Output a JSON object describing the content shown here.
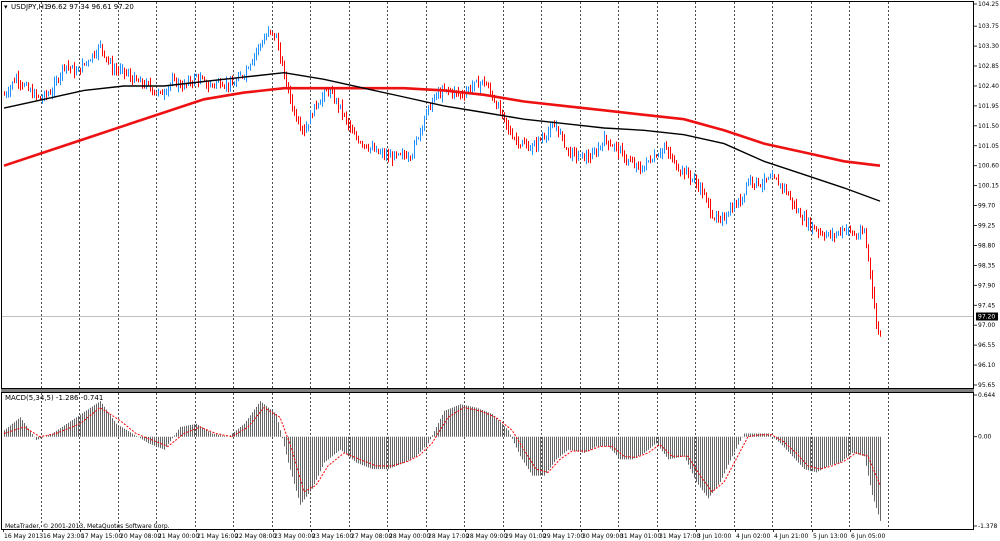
{
  "chart_data": {
    "type": "candlestick",
    "header": {
      "symbol_label": "USDJPY,H1",
      "ohlc_text": "96.62 97.34 96.61 97.20",
      "indicator_label": "MACD(5,34,5) -1.286 -0.741"
    },
    "footer_text": "MetaTrader, © 2001-2013, MetaQuotes Software Corp.",
    "current_price_label": "97.20",
    "current_price": 97.2,
    "colors": {
      "bull": "#1e90ff",
      "bear": "#ff0000",
      "ma_fast": "#000000",
      "ma_slow": "#ee1111",
      "hist": "#555555",
      "signal": "#ff0000",
      "grid": "#000000",
      "price_line": "#c0c0c0"
    },
    "price_axis": {
      "ylim": [
        95.65,
        104.25
      ],
      "ticks": [
        "104.25",
        "103.75",
        "103.30",
        "102.85",
        "102.40",
        "101.95",
        "101.50",
        "101.05",
        "100.60",
        "100.15",
        "99.70",
        "99.25",
        "98.80",
        "98.35",
        "97.90",
        "97.45",
        "97.00",
        "96.55",
        "96.10",
        "95.65"
      ]
    },
    "macd_axis": {
      "ylim": [
        -1.378,
        0.644
      ],
      "ticks": [
        "0.644",
        "0.00",
        "-1.378"
      ]
    },
    "x_labels": [
      "16 May 2013",
      "16 May 23:00",
      "17 May 15:00",
      "20 May 08:00",
      "21 May 00:00",
      "21 May 16:00",
      "22 May 08:00",
      "23 May 00:00",
      "23 May 16:00",
      "27 May 08:00",
      "28 May 00:00",
      "28 May 17:00",
      "28 May 09:00",
      "29 May 01:00",
      "29 May 17:00",
      "30 May 09:00",
      "31 May 01:00",
      "31 May 17:00",
      "3 Jun 10:00",
      "4 Jun 02:00",
      "4 Jun 21:00",
      "5 Jun 13:00",
      "6 Jun 05:00"
    ],
    "price_path": [
      [
        0,
        102.2
      ],
      [
        6,
        102.6
      ],
      [
        12,
        102.3
      ],
      [
        18,
        102.1
      ],
      [
        24,
        102.3
      ],
      [
        30,
        102.9
      ],
      [
        36,
        102.7
      ],
      [
        42,
        103.0
      ],
      [
        48,
        103.3
      ],
      [
        54,
        102.8
      ],
      [
        60,
        102.7
      ],
      [
        66,
        102.5
      ],
      [
        72,
        102.4
      ],
      [
        78,
        102.2
      ],
      [
        84,
        102.5
      ],
      [
        90,
        102.4
      ],
      [
        96,
        102.6
      ],
      [
        102,
        102.4
      ],
      [
        108,
        102.5
      ],
      [
        114,
        102.4
      ],
      [
        120,
        102.7
      ],
      [
        126,
        103.2
      ],
      [
        132,
        103.6
      ],
      [
        136,
        103.5
      ],
      [
        140,
        102.6
      ],
      [
        145,
        101.8
      ],
      [
        150,
        101.4
      ],
      [
        156,
        102.0
      ],
      [
        162,
        102.3
      ],
      [
        168,
        101.9
      ],
      [
        174,
        101.3
      ],
      [
        180,
        101.1
      ],
      [
        186,
        100.9
      ],
      [
        192,
        100.8
      ],
      [
        198,
        100.8
      ],
      [
        204,
        100.9
      ],
      [
        210,
        101.7
      ],
      [
        216,
        102.2
      ],
      [
        222,
        102.3
      ],
      [
        228,
        102.2
      ],
      [
        234,
        102.4
      ],
      [
        240,
        102.5
      ],
      [
        246,
        102.0
      ],
      [
        252,
        101.4
      ],
      [
        258,
        101.1
      ],
      [
        264,
        101.0
      ],
      [
        270,
        101.3
      ],
      [
        276,
        101.5
      ],
      [
        282,
        100.9
      ],
      [
        288,
        100.8
      ],
      [
        294,
        100.8
      ],
      [
        300,
        101.2
      ],
      [
        306,
        101.0
      ],
      [
        312,
        100.7
      ],
      [
        318,
        100.5
      ],
      [
        324,
        100.8
      ],
      [
        330,
        101.0
      ],
      [
        336,
        100.6
      ],
      [
        342,
        100.4
      ],
      [
        348,
        100.1
      ],
      [
        354,
        99.5
      ],
      [
        358,
        99.3
      ],
      [
        362,
        99.6
      ],
      [
        368,
        99.8
      ],
      [
        372,
        100.3
      ],
      [
        378,
        100.2
      ],
      [
        384,
        100.3
      ],
      [
        390,
        100.1
      ],
      [
        396,
        99.6
      ],
      [
        402,
        99.3
      ],
      [
        408,
        99.1
      ],
      [
        414,
        99.0
      ],
      [
        420,
        99.2
      ],
      [
        426,
        99.0
      ],
      [
        430,
        99.1
      ],
      [
        433,
        98.2
      ],
      [
        436,
        97.0
      ],
      [
        438,
        96.8
      ]
    ],
    "ma_fast": [
      [
        0,
        101.9
      ],
      [
        20,
        102.1
      ],
      [
        40,
        102.3
      ],
      [
        60,
        102.4
      ],
      [
        80,
        102.4
      ],
      [
        100,
        102.5
      ],
      [
        120,
        102.6
      ],
      [
        140,
        102.7
      ],
      [
        160,
        102.55
      ],
      [
        180,
        102.35
      ],
      [
        200,
        102.15
      ],
      [
        220,
        101.95
      ],
      [
        240,
        101.8
      ],
      [
        260,
        101.65
      ],
      [
        280,
        101.55
      ],
      [
        300,
        101.45
      ],
      [
        320,
        101.4
      ],
      [
        340,
        101.3
      ],
      [
        360,
        101.1
      ],
      [
        380,
        100.7
      ],
      [
        400,
        100.4
      ],
      [
        420,
        100.1
      ],
      [
        438,
        99.8
      ]
    ],
    "ma_slow": [
      [
        0,
        100.6
      ],
      [
        20,
        100.9
      ],
      [
        40,
        101.2
      ],
      [
        60,
        101.5
      ],
      [
        80,
        101.8
      ],
      [
        100,
        102.1
      ],
      [
        120,
        102.25
      ],
      [
        140,
        102.35
      ],
      [
        160,
        102.35
      ],
      [
        180,
        102.35
      ],
      [
        200,
        102.35
      ],
      [
        220,
        102.3
      ],
      [
        240,
        102.2
      ],
      [
        260,
        102.05
      ],
      [
        280,
        101.95
      ],
      [
        300,
        101.85
      ],
      [
        320,
        101.75
      ],
      [
        340,
        101.65
      ],
      [
        360,
        101.4
      ],
      [
        380,
        101.1
      ],
      [
        400,
        100.9
      ],
      [
        420,
        100.7
      ],
      [
        438,
        100.6
      ]
    ],
    "macd_hist": [
      [
        0,
        0.1
      ],
      [
        8,
        0.3
      ],
      [
        16,
        -0.05
      ],
      [
        24,
        0.05
      ],
      [
        36,
        0.3
      ],
      [
        48,
        0.55
      ],
      [
        56,
        0.2
      ],
      [
        64,
        0.05
      ],
      [
        72,
        -0.1
      ],
      [
        80,
        -0.2
      ],
      [
        88,
        0.15
      ],
      [
        96,
        0.2
      ],
      [
        104,
        0.05
      ],
      [
        112,
        0.0
      ],
      [
        120,
        0.2
      ],
      [
        128,
        0.55
      ],
      [
        136,
        0.35
      ],
      [
        142,
        -0.4
      ],
      [
        148,
        -1.05
      ],
      [
        154,
        -0.8
      ],
      [
        160,
        -0.4
      ],
      [
        168,
        -0.2
      ],
      [
        176,
        -0.4
      ],
      [
        184,
        -0.5
      ],
      [
        192,
        -0.5
      ],
      [
        200,
        -0.4
      ],
      [
        206,
        -0.3
      ],
      [
        212,
        -0.1
      ],
      [
        220,
        0.4
      ],
      [
        228,
        0.5
      ],
      [
        236,
        0.45
      ],
      [
        244,
        0.35
      ],
      [
        252,
        0.1
      ],
      [
        258,
        -0.3
      ],
      [
        264,
        -0.6
      ],
      [
        270,
        -0.6
      ],
      [
        276,
        -0.35
      ],
      [
        282,
        -0.2
      ],
      [
        290,
        -0.25
      ],
      [
        296,
        -0.15
      ],
      [
        302,
        -0.15
      ],
      [
        308,
        -0.35
      ],
      [
        314,
        -0.35
      ],
      [
        320,
        -0.25
      ],
      [
        326,
        -0.1
      ],
      [
        332,
        -0.35
      ],
      [
        340,
        -0.3
      ],
      [
        346,
        -0.7
      ],
      [
        352,
        -0.95
      ],
      [
        358,
        -0.7
      ],
      [
        364,
        -0.3
      ],
      [
        370,
        0.05
      ],
      [
        376,
        0.05
      ],
      [
        382,
        0.05
      ],
      [
        388,
        -0.1
      ],
      [
        394,
        -0.3
      ],
      [
        400,
        -0.5
      ],
      [
        406,
        -0.55
      ],
      [
        412,
        -0.45
      ],
      [
        418,
        -0.4
      ],
      [
        424,
        -0.25
      ],
      [
        430,
        -0.3
      ],
      [
        434,
        -0.9
      ],
      [
        438,
        -1.3
      ]
    ],
    "macd_signal": [
      [
        0,
        0.05
      ],
      [
        10,
        0.15
      ],
      [
        18,
        0.0
      ],
      [
        26,
        0.05
      ],
      [
        38,
        0.2
      ],
      [
        48,
        0.45
      ],
      [
        58,
        0.25
      ],
      [
        66,
        0.05
      ],
      [
        74,
        -0.05
      ],
      [
        82,
        -0.15
      ],
      [
        90,
        0.05
      ],
      [
        98,
        0.15
      ],
      [
        106,
        0.05
      ],
      [
        114,
        0.0
      ],
      [
        122,
        0.15
      ],
      [
        130,
        0.45
      ],
      [
        138,
        0.3
      ],
      [
        144,
        -0.2
      ],
      [
        150,
        -0.85
      ],
      [
        156,
        -0.75
      ],
      [
        162,
        -0.45
      ],
      [
        170,
        -0.25
      ],
      [
        178,
        -0.35
      ],
      [
        186,
        -0.45
      ],
      [
        194,
        -0.45
      ],
      [
        202,
        -0.38
      ],
      [
        208,
        -0.28
      ],
      [
        214,
        -0.1
      ],
      [
        222,
        0.3
      ],
      [
        230,
        0.45
      ],
      [
        238,
        0.4
      ],
      [
        246,
        0.3
      ],
      [
        254,
        0.1
      ],
      [
        260,
        -0.2
      ],
      [
        266,
        -0.5
      ],
      [
        272,
        -0.55
      ],
      [
        278,
        -0.35
      ],
      [
        284,
        -0.22
      ],
      [
        292,
        -0.22
      ],
      [
        298,
        -0.15
      ],
      [
        304,
        -0.15
      ],
      [
        310,
        -0.3
      ],
      [
        316,
        -0.32
      ],
      [
        322,
        -0.25
      ],
      [
        328,
        -0.12
      ],
      [
        334,
        -0.3
      ],
      [
        342,
        -0.3
      ],
      [
        348,
        -0.6
      ],
      [
        354,
        -0.85
      ],
      [
        360,
        -0.7
      ],
      [
        366,
        -0.35
      ],
      [
        372,
        0.0
      ],
      [
        378,
        0.03
      ],
      [
        384,
        0.03
      ],
      [
        390,
        -0.08
      ],
      [
        396,
        -0.25
      ],
      [
        402,
        -0.45
      ],
      [
        408,
        -0.5
      ],
      [
        414,
        -0.45
      ],
      [
        420,
        -0.38
      ],
      [
        426,
        -0.25
      ],
      [
        432,
        -0.3
      ],
      [
        436,
        -0.6
      ],
      [
        438,
        -0.74
      ]
    ]
  }
}
